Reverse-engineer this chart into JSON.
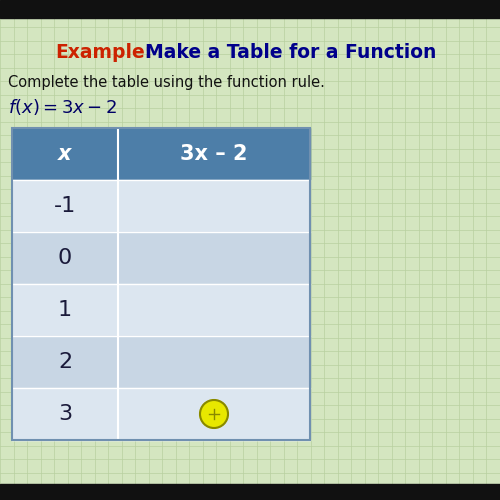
{
  "title_example": "Example:",
  "title_rest": "  Make a Table for a Function",
  "subtitle": "Complete the table using the function rule.",
  "function_label": "f(x) = 3x − 2",
  "col_headers": [
    "x",
    "3x – 2"
  ],
  "x_values": [
    "-1",
    "0",
    "1",
    "2",
    "3"
  ],
  "background_color": "#d4e6c0",
  "grid_color": "#b8d0a0",
  "header_bg": "#4d7ea8",
  "header_text": "#ffffff",
  "row_bg_odd": "#dce6f0",
  "row_bg_even": "#c8d6e4",
  "cell_text_color": "#1a1a3a",
  "example_color": "#cc2200",
  "title_color": "#00008B",
  "subtitle_color": "#111111",
  "function_color": "#000066",
  "dot_color": "#e8e800",
  "dot_outline": "#888800",
  "top_bar_color": "#111111",
  "bottom_bar_color": "#111111"
}
